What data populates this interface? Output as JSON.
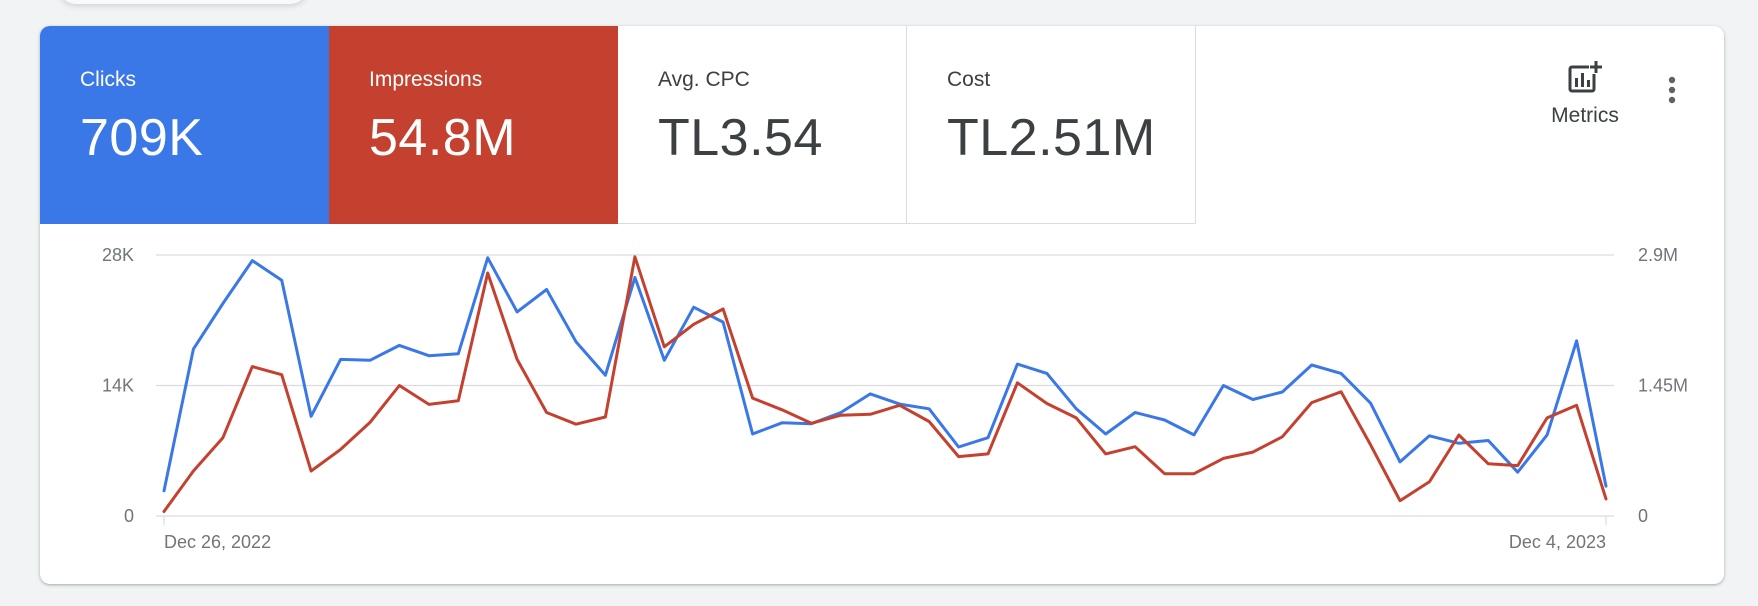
{
  "scorecards": [
    {
      "label": "Clicks",
      "value": "709K",
      "color": "#3b78e7"
    },
    {
      "label": "Impressions",
      "value": "54.8M",
      "color": "#c5412f"
    },
    {
      "label": "Avg. CPC",
      "value": "TL3.54"
    },
    {
      "label": "Cost",
      "value": "TL2.51M"
    }
  ],
  "toolbar": {
    "metrics_label": "Metrics",
    "metrics_icon": "add-chart-icon",
    "more_icon": "more-vert-icon"
  },
  "chart_data": {
    "type": "line",
    "x_start_label": "Dec 26, 2022",
    "x_end_label": "Dec 4, 2023",
    "left_axis": {
      "ticks": [
        "0",
        "14K",
        "28K"
      ],
      "values": [
        0,
        14000,
        28000
      ]
    },
    "right_axis": {
      "ticks": [
        "0",
        "1.45M",
        "2.9M"
      ],
      "values": [
        0,
        1450000,
        2900000
      ]
    },
    "grid": true,
    "series": [
      {
        "key": "clicks",
        "color": "#3b78e7",
        "axis": "left",
        "values": [
          2700,
          17900,
          22800,
          27400,
          25300,
          10700,
          16800,
          16700,
          18300,
          17200,
          17400,
          27700,
          21900,
          24300,
          18700,
          15100,
          25600,
          16700,
          22400,
          20800,
          8800,
          10000,
          9900,
          11100,
          13100,
          12000,
          11500,
          7400,
          8400,
          16300,
          15300,
          11500,
          8800,
          11100,
          10300,
          8700,
          14000,
          12500,
          13300,
          16200,
          15300,
          12100,
          5800,
          8600,
          7800,
          8100,
          4700,
          8700,
          18800,
          3200
        ]
      },
      {
        "key": "impressions",
        "color": "#c5412f",
        "axis": "right",
        "values": [
          50000,
          500000,
          870000,
          1660000,
          1570000,
          500000,
          740000,
          1040000,
          1450000,
          1240000,
          1280000,
          2700000,
          1740000,
          1150000,
          1020000,
          1100000,
          2880000,
          1880000,
          2130000,
          2300000,
          1310000,
          1180000,
          1030000,
          1120000,
          1130000,
          1230000,
          1050000,
          660000,
          690000,
          1480000,
          1250000,
          1090000,
          690000,
          770000,
          470000,
          470000,
          640000,
          710000,
          880000,
          1260000,
          1380000,
          790000,
          170000,
          380000,
          900000,
          580000,
          560000,
          1090000,
          1230000,
          190000
        ]
      }
    ]
  }
}
